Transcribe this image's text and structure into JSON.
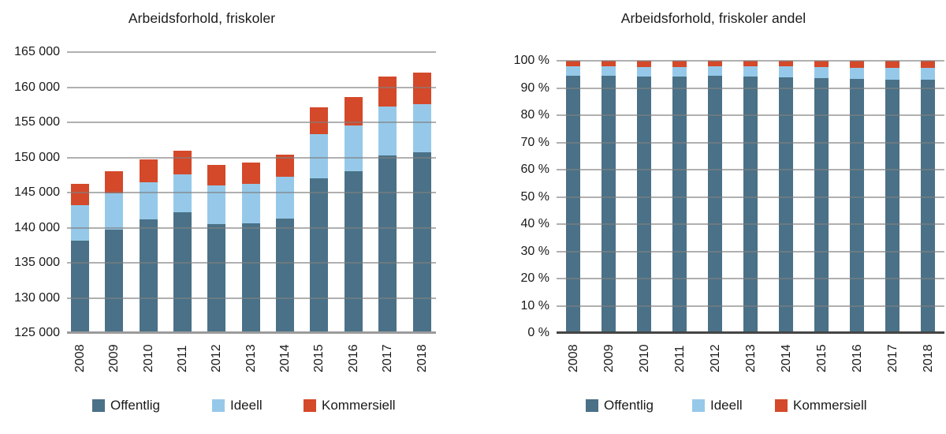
{
  "page": {
    "background": "#ffffff"
  },
  "colors": {
    "offentlig": "#4A7187",
    "ideell": "#96C9E9",
    "kommersiell": "#D4492A",
    "grid": "#808080",
    "baseline_left": "#9B9B9B",
    "baseline_right": "#454545",
    "text": "#1A1A1A"
  },
  "legend": {
    "items": [
      {
        "label": "Offentlig",
        "color": "#4A7187"
      },
      {
        "label": "Ideell",
        "color": "#96C9E9"
      },
      {
        "label": "Kommersiell",
        "color": "#D4492A"
      }
    ]
  },
  "chart_data": [
    {
      "type": "bar",
      "stacked": true,
      "title": "Arbeidsforhold, friskoler",
      "categories": [
        "2008",
        "2009",
        "2010",
        "2011",
        "2012",
        "2013",
        "2014",
        "2015",
        "2016",
        "2017",
        "2018"
      ],
      "series": [
        {
          "name": "Offentlig",
          "color": "#4A7187",
          "values": [
            138200,
            139700,
            141200,
            142200,
            140500,
            140600,
            141300,
            147000,
            148000,
            150300,
            150700
          ]
        },
        {
          "name": "Ideell",
          "color": "#96C9E9",
          "values": [
            5000,
            5200,
            5300,
            5400,
            5500,
            5600,
            5900,
            6300,
            6600,
            6900,
            6900
          ]
        },
        {
          "name": "Kommersiell",
          "color": "#D4492A",
          "values": [
            3000,
            3100,
            3200,
            3400,
            2900,
            3100,
            3200,
            3800,
            4000,
            4300,
            4500
          ]
        }
      ],
      "totals": [
        146200,
        148000,
        149700,
        151000,
        148900,
        149300,
        150400,
        157100,
        158600,
        161500,
        162100
      ],
      "ylim": [
        125000,
        165000
      ],
      "ytick_step": 5000,
      "ytick_labels_top_down": [
        "165 000",
        "160 000",
        "155 000",
        "150 000",
        "145 000",
        "140 000",
        "135 000",
        "130 000",
        "125 000"
      ],
      "grid": true,
      "legend_position": "bottom",
      "xlabel": "",
      "ylabel": ""
    },
    {
      "type": "bar",
      "stacked": true,
      "percent": true,
      "title": "Arbeidsforhold, friskoler andel",
      "categories": [
        "2008",
        "2009",
        "2010",
        "2011",
        "2012",
        "2013",
        "2014",
        "2015",
        "2016",
        "2017",
        "2018"
      ],
      "series": [
        {
          "name": "Offentlig",
          "color": "#4A7187",
          "values": [
            94.5,
            94.4,
            94.3,
            94.2,
            94.4,
            94.2,
            94.0,
            93.6,
            93.3,
            93.1,
            93.0
          ]
        },
        {
          "name": "Ideell",
          "color": "#96C9E9",
          "values": [
            3.4,
            3.5,
            3.5,
            3.6,
            3.7,
            3.8,
            3.9,
            4.0,
            4.2,
            4.3,
            4.3
          ]
        },
        {
          "name": "Kommersiell",
          "color": "#D4492A",
          "values": [
            2.1,
            2.1,
            2.2,
            2.2,
            1.9,
            2.0,
            2.1,
            2.4,
            2.5,
            2.6,
            2.7
          ]
        }
      ],
      "ylim": [
        0,
        100
      ],
      "ytick_step": 10,
      "ytick_labels_top_down": [
        "100 %",
        "90 %",
        "80 %",
        "70 %",
        "60 %",
        "50 %",
        "40 %",
        "30 %",
        "20 %",
        "10 %",
        "0 %"
      ],
      "grid": true,
      "legend_position": "bottom",
      "xlabel": "",
      "ylabel": ""
    }
  ]
}
